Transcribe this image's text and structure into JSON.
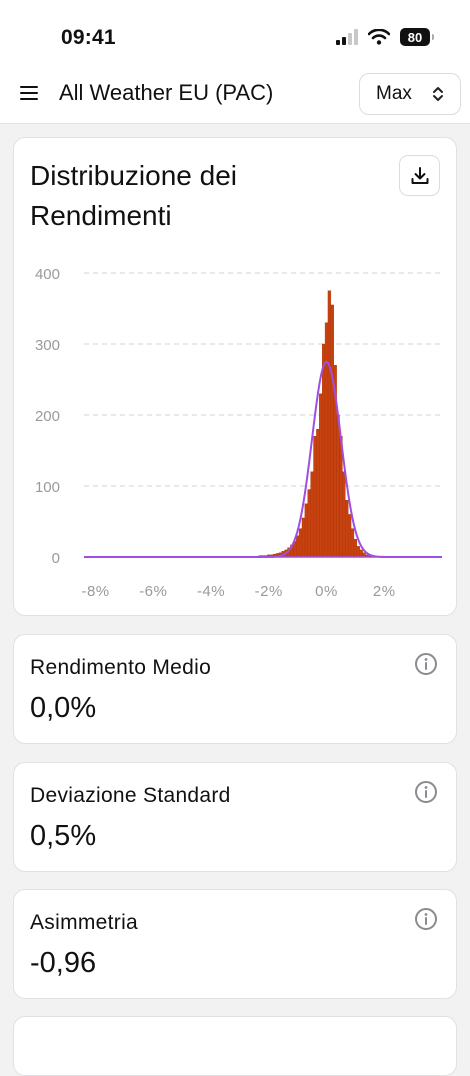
{
  "status_bar": {
    "time": "09:41",
    "battery": "80"
  },
  "header": {
    "title": "All Weather EU (PAC)",
    "range_value": "Max"
  },
  "chart_card": {
    "title": "Distribuzione dei Rendimenti"
  },
  "chart_data": {
    "type": "bar",
    "title": "Distribuzione dei Rendimenti",
    "xlabel": "",
    "ylabel": "",
    "x_unit": "%",
    "xlim": [
      -8.4,
      4.0
    ],
    "ylim": [
      0,
      400
    ],
    "x_ticks": [
      "-8%",
      "-6%",
      "-4%",
      "-2%",
      "0%",
      "2%"
    ],
    "x_tick_values": [
      -8,
      -6,
      -4,
      -2,
      0,
      2
    ],
    "y_ticks": [
      0,
      100,
      200,
      300,
      400
    ],
    "grid": "horizontal dashed",
    "bin_width": 0.1,
    "bins": [
      {
        "x": -2.6,
        "y": 1
      },
      {
        "x": -2.5,
        "y": 1
      },
      {
        "x": -2.4,
        "y": 1
      },
      {
        "x": -2.3,
        "y": 2
      },
      {
        "x": -2.2,
        "y": 2
      },
      {
        "x": -2.1,
        "y": 2
      },
      {
        "x": -2.0,
        "y": 3
      },
      {
        "x": -1.9,
        "y": 3
      },
      {
        "x": -1.8,
        "y": 4
      },
      {
        "x": -1.7,
        "y": 5
      },
      {
        "x": -1.6,
        "y": 6
      },
      {
        "x": -1.5,
        "y": 8
      },
      {
        "x": -1.4,
        "y": 10
      },
      {
        "x": -1.3,
        "y": 13
      },
      {
        "x": -1.2,
        "y": 17
      },
      {
        "x": -1.1,
        "y": 22
      },
      {
        "x": -1.0,
        "y": 30
      },
      {
        "x": -0.9,
        "y": 40
      },
      {
        "x": -0.8,
        "y": 55
      },
      {
        "x": -0.7,
        "y": 75
      },
      {
        "x": -0.6,
        "y": 95
      },
      {
        "x": -0.5,
        "y": 120
      },
      {
        "x": -0.4,
        "y": 170
      },
      {
        "x": -0.3,
        "y": 180
      },
      {
        "x": -0.2,
        "y": 230
      },
      {
        "x": -0.1,
        "y": 300
      },
      {
        "x": 0.0,
        "y": 330
      },
      {
        "x": 0.1,
        "y": 375
      },
      {
        "x": 0.2,
        "y": 355
      },
      {
        "x": 0.3,
        "y": 270
      },
      {
        "x": 0.4,
        "y": 200
      },
      {
        "x": 0.5,
        "y": 170
      },
      {
        "x": 0.6,
        "y": 120
      },
      {
        "x": 0.7,
        "y": 80
      },
      {
        "x": 0.8,
        "y": 60
      },
      {
        "x": 0.9,
        "y": 40
      },
      {
        "x": 1.0,
        "y": 25
      },
      {
        "x": 1.1,
        "y": 15
      },
      {
        "x": 1.2,
        "y": 10
      },
      {
        "x": 1.3,
        "y": 6
      },
      {
        "x": 1.4,
        "y": 3
      },
      {
        "x": 1.5,
        "y": 2
      }
    ],
    "normal_curve": {
      "mean": 0.0,
      "std": 0.5,
      "peak": 275
    },
    "colors": {
      "bars": "#c8410e",
      "bar_edge": "#a8360b",
      "curve": "#a04ee0",
      "grid": "#dcdcdc",
      "tick_label": "#9a9a9a"
    }
  },
  "stats": [
    {
      "label": "Rendimento Medio",
      "value": "0,0%"
    },
    {
      "label": "Deviazione Standard",
      "value": "0,5%"
    },
    {
      "label": "Asimmetria",
      "value": "-0,96"
    }
  ]
}
